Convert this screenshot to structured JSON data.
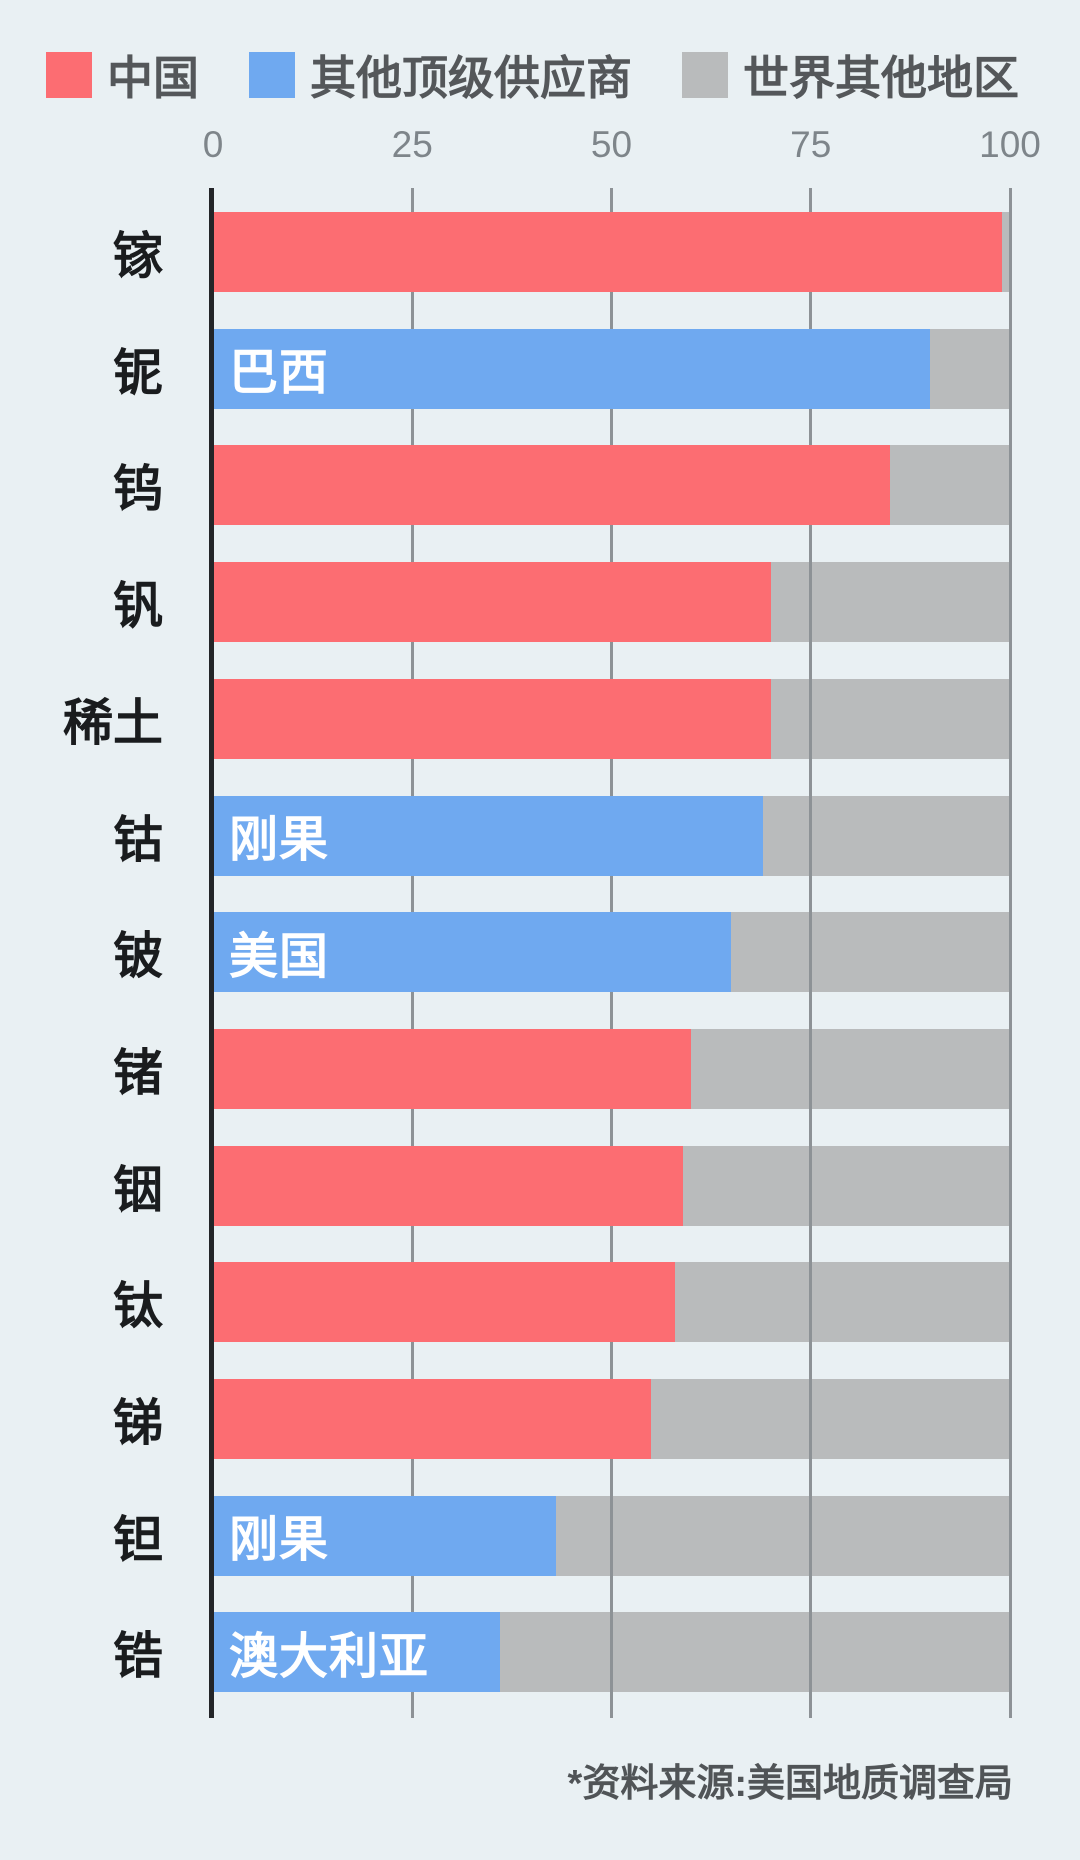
{
  "legend": {
    "items": [
      {
        "label": "中国",
        "color": "#FC6D72"
      },
      {
        "label": "其他顶级供应商",
        "color": "#6FA9F0"
      },
      {
        "label": "世界其他地区",
        "color": "#B9BBBC"
      }
    ]
  },
  "source_note": "*资料来源:美国地质调查局",
  "chart_data": {
    "type": "bar",
    "orientation": "horizontal",
    "stacked": true,
    "value_unit": "percent",
    "xlim": [
      0,
      100
    ],
    "x_ticks": [
      0,
      25,
      50,
      75,
      100
    ],
    "grid": "vertical",
    "legend_position": "top",
    "series_names": [
      "中国",
      "其他顶级供应商",
      "世界其他地区"
    ],
    "categories": [
      "镓",
      "铌",
      "钨",
      "钒",
      "稀土",
      "钴",
      "铍",
      "锗",
      "铟",
      "钛",
      "锑",
      "钽",
      "锆"
    ],
    "rows": [
      {
        "category": "镓",
        "series": "中国",
        "value": 99,
        "rest_of_world": 1,
        "bar_label": ""
      },
      {
        "category": "铌",
        "series": "其他顶级供应商",
        "value": 90,
        "rest_of_world": 10,
        "bar_label": "巴西"
      },
      {
        "category": "钨",
        "series": "中国",
        "value": 85,
        "rest_of_world": 15,
        "bar_label": ""
      },
      {
        "category": "钒",
        "series": "中国",
        "value": 70,
        "rest_of_world": 30,
        "bar_label": ""
      },
      {
        "category": "稀土",
        "series": "中国",
        "value": 70,
        "rest_of_world": 30,
        "bar_label": ""
      },
      {
        "category": "钴",
        "series": "其他顶级供应商",
        "value": 69,
        "rest_of_world": 31,
        "bar_label": "刚果"
      },
      {
        "category": "铍",
        "series": "其他顶级供应商",
        "value": 65,
        "rest_of_world": 35,
        "bar_label": "美国"
      },
      {
        "category": "锗",
        "series": "中国",
        "value": 60,
        "rest_of_world": 40,
        "bar_label": ""
      },
      {
        "category": "铟",
        "series": "中国",
        "value": 59,
        "rest_of_world": 41,
        "bar_label": ""
      },
      {
        "category": "钛",
        "series": "中国",
        "value": 58,
        "rest_of_world": 42,
        "bar_label": ""
      },
      {
        "category": "锑",
        "series": "中国",
        "value": 55,
        "rest_of_world": 45,
        "bar_label": ""
      },
      {
        "category": "钽",
        "series": "其他顶级供应商",
        "value": 43,
        "rest_of_world": 57,
        "bar_label": "刚果"
      },
      {
        "category": "锆",
        "series": "其他顶级供应商",
        "value": 36,
        "rest_of_world": 64,
        "bar_label": "澳大利亚"
      }
    ],
    "colors": {
      "china": "#FC6D72",
      "other_top_supplier": "#6FA9F0",
      "rest_of_world": "#B9BBBC",
      "background": "#E9F0F3",
      "gridline": "#8D9296",
      "axis_line": "#232528"
    }
  }
}
